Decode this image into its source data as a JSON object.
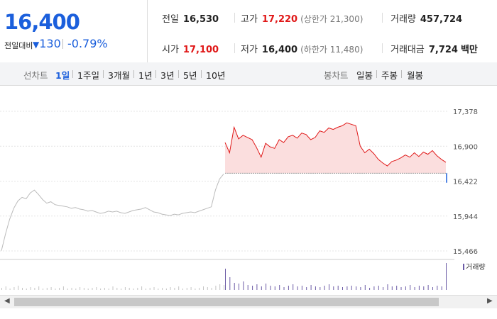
{
  "price": "16,400",
  "change": {
    "label": "전일대비",
    "arrow": "▼",
    "value": "130",
    "percent": "-0.79%"
  },
  "info": {
    "prev_close": {
      "label": "전일",
      "value": "16,530"
    },
    "high": {
      "label": "고가",
      "value": "17,220",
      "sub": "(상한가 21,300)"
    },
    "volume": {
      "label": "거래량",
      "value": "457,724"
    },
    "open": {
      "label": "시가",
      "value": "17,100"
    },
    "low": {
      "label": "저가",
      "value": "16,400",
      "sub": "(하한가 11,480)"
    },
    "amount": {
      "label": "거래대금",
      "value": "7,724",
      "unit": "백만"
    }
  },
  "line_tabs": {
    "label": "선차트",
    "items": [
      "1일",
      "1주일",
      "3개월",
      "1년",
      "3년",
      "5년",
      "10년"
    ],
    "active": 0
  },
  "candle_tabs": {
    "label": "봉차트",
    "items": [
      "일봉",
      "주봉",
      "월봉"
    ]
  },
  "colors": {
    "up": "#e01818",
    "down": "#1b5fdc",
    "prev_line": "#bbbbbb",
    "volume": "#6b5ba6"
  },
  "chart_data": {
    "type": "line",
    "y_ticks": [
      "17,378",
      "16,900",
      "16,422",
      "15,944",
      "15,466"
    ],
    "ylim": [
      15466,
      17378
    ],
    "prev_close": 16530,
    "prev_day_values": [
      15470,
      15700,
      15900,
      16050,
      16150,
      16200,
      16180,
      16260,
      16300,
      16240,
      16170,
      16120,
      16140,
      16100,
      16090,
      16080,
      16070,
      16050,
      16060,
      16040,
      16030,
      16010,
      16020,
      16000,
      15980,
      15990,
      16010,
      16000,
      16010,
      15990,
      15980,
      16000,
      16020,
      16030,
      16040,
      16060,
      16030,
      16000,
      15990,
      15970,
      15960,
      15950,
      15970,
      15960,
      15980,
      15990,
      16000,
      15990,
      16010,
      16030,
      16050,
      16070,
      16300,
      16450,
      16520
    ],
    "today_values": [
      16950,
      16810,
      17160,
      17000,
      17050,
      17020,
      16990,
      16880,
      16750,
      16940,
      16890,
      16870,
      16990,
      16950,
      17030,
      17050,
      17010,
      17080,
      17060,
      16990,
      17020,
      17110,
      17090,
      17150,
      17130,
      17160,
      17180,
      17220,
      17200,
      17180,
      16900,
      16810,
      16860,
      16800,
      16720,
      16670,
      16630,
      16690,
      16710,
      16740,
      16780,
      16750,
      16810,
      16760,
      16820,
      16790,
      16840,
      16770,
      16720,
      16680
    ],
    "volume_legend": "거래량",
    "volume_prev": [
      3,
      5,
      2,
      4,
      6,
      3,
      2,
      4,
      3,
      5,
      2,
      3,
      4,
      2,
      3,
      5,
      2,
      3,
      2,
      4,
      3,
      2,
      3,
      4,
      2,
      3,
      2,
      5,
      3,
      2,
      4,
      3,
      2,
      3,
      5,
      2,
      3,
      4,
      2,
      3,
      2,
      4,
      3,
      5,
      2,
      3,
      4,
      2,
      3,
      5,
      4,
      3,
      6,
      8,
      7
    ],
    "volume_today": [
      30,
      18,
      10,
      9,
      12,
      7,
      6,
      8,
      5,
      9,
      6,
      5,
      7,
      4,
      6,
      8,
      5,
      6,
      4,
      7,
      5,
      4,
      6,
      8,
      5,
      6,
      4,
      5,
      6,
      5,
      4,
      7,
      3,
      5,
      6,
      4,
      8,
      5,
      6,
      4,
      5,
      7,
      4,
      6,
      5,
      7,
      4,
      6,
      5,
      38
    ]
  },
  "scrollbar": {
    "left_arrow": "◀",
    "right_arrow": "▶"
  }
}
